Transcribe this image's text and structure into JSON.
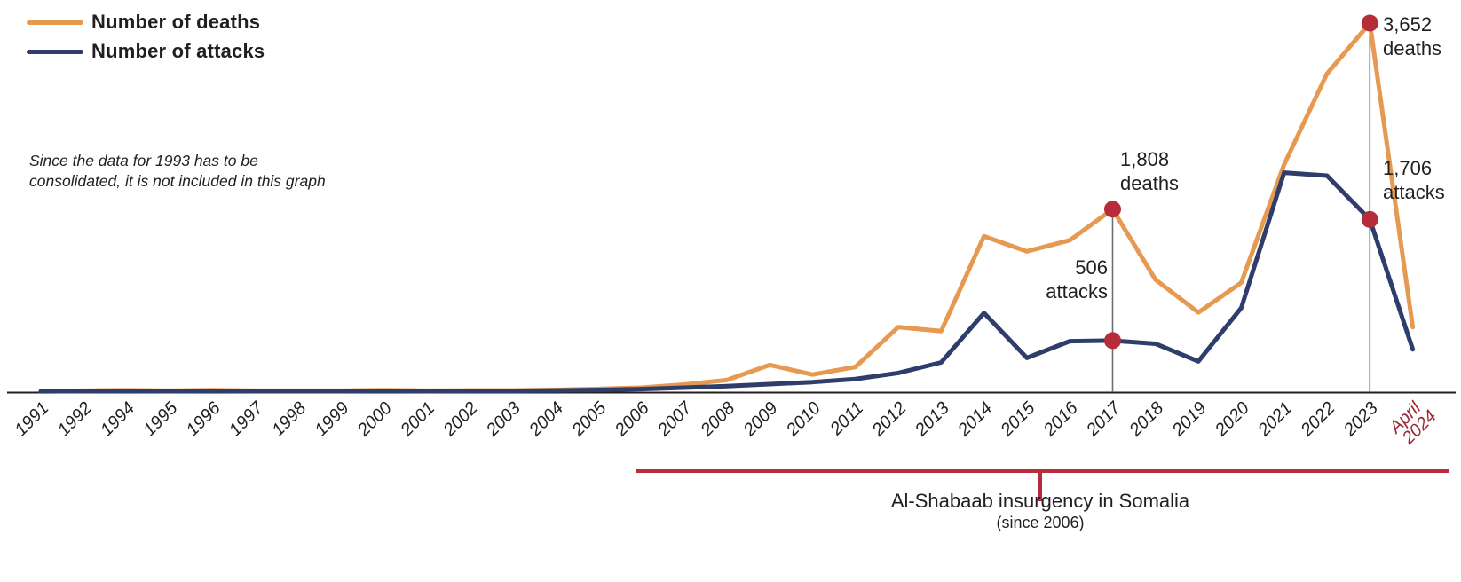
{
  "legend": {
    "deaths_label": "Number of deaths",
    "attacks_label": "Number of attacks"
  },
  "note": {
    "line1": "Since the data for 1993 has to be",
    "line2": "consolidated, it is not included in this graph"
  },
  "annotations": {
    "deaths_2017": {
      "value": "1,808",
      "unit": "deaths"
    },
    "attacks_2017": {
      "value": "506",
      "unit": "attacks"
    },
    "deaths_2023": {
      "value": "3,652",
      "unit": "deaths"
    },
    "attacks_2023": {
      "value": "1,706",
      "unit": "attacks"
    }
  },
  "bracket": {
    "title": "Al-Shabaab insurgency in Somalia",
    "subtitle": "(since 2006)",
    "from_label": "2006",
    "to_label": "April 2024"
  },
  "colors": {
    "deaths_line": "#E69950",
    "attacks_line": "#2F3D6B",
    "highlight_dot": "#B52C3B",
    "bracket_red": "#B82C3C",
    "final_label_red": "#9B2933",
    "axis": "#231f20",
    "text": "#231f20",
    "guide_line": "#6d6e71"
  },
  "chart_data": {
    "type": "line",
    "title": "",
    "xlabel": "",
    "ylabel": "",
    "grid": false,
    "legend_position": "top-left",
    "ylim": [
      0,
      3652
    ],
    "note": "1993 excluded from x-axis",
    "categories": [
      "1991",
      "1992",
      "1994",
      "1995",
      "1996",
      "1997",
      "1998",
      "1999",
      "2000",
      "2001",
      "2002",
      "2003",
      "2004",
      "2005",
      "2006",
      "2007",
      "2008",
      "2009",
      "2010",
      "2011",
      "2012",
      "2013",
      "2014",
      "2015",
      "2016",
      "2017",
      "2018",
      "2019",
      "2020",
      "2021",
      "2022",
      "2023",
      "April 2024"
    ],
    "series": [
      {
        "name": "Number of deaths",
        "values": [
          6,
          10,
          14,
          10,
          15,
          10,
          10,
          10,
          15,
          10,
          12,
          12,
          18,
          28,
          40,
          70,
          115,
          265,
          170,
          245,
          640,
          600,
          1540,
          1390,
          1500,
          1808,
          1110,
          785,
          1080,
          2250,
          3150,
          3652,
          640
        ]
      },
      {
        "name": "Number of attacks",
        "values": [
          3,
          5,
          8,
          6,
          9,
          6,
          6,
          6,
          9,
          6,
          8,
          9,
          12,
          18,
          25,
          40,
          55,
          75,
          95,
          125,
          185,
          290,
          780,
          335,
          500,
          506,
          475,
          300,
          830,
          2170,
          2140,
          1706,
          420
        ]
      }
    ],
    "highlight_points": [
      {
        "year": "2017",
        "series": "Number of deaths",
        "value": 1808
      },
      {
        "year": "2017",
        "series": "Number of attacks",
        "value": 506
      },
      {
        "year": "2023",
        "series": "Number of deaths",
        "value": 3652
      },
      {
        "year": "2023",
        "series": "Number of attacks",
        "value": 1706
      }
    ]
  }
}
